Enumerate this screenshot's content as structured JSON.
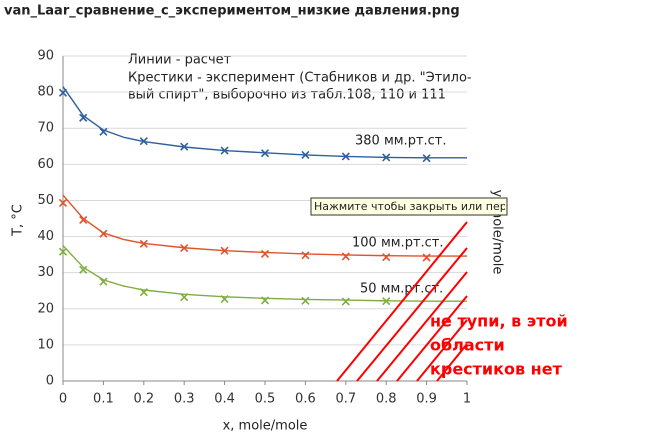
{
  "file_name": "van_Laar_сравнение_с_экспериментом_низкие давления.png",
  "tooltip": "Нажмите чтобы закрыть или перета",
  "overlay_note": [
    "не тупи, в этой",
    "области",
    "крестиков нет"
  ],
  "chart_data": {
    "type": "line",
    "x_label": "x, mole/mole",
    "y_label": "T, °C",
    "y2_label": "y, mole/mole",
    "notes": [
      "Линии - расчет",
      "Крестики - эксперимент (Стабников и др. \"Этило-",
      "вый спирт\", выборочно из табл.108, 110 и 111"
    ],
    "xlim": [
      0,
      1
    ],
    "xticks": [
      0,
      0.1,
      0.2,
      0.3,
      0.4,
      0.5,
      0.6,
      0.7,
      0.8,
      0.9,
      1
    ],
    "ylim": [
      0,
      90
    ],
    "yticks": [
      0,
      10,
      20,
      30,
      40,
      50,
      60,
      70,
      80,
      90
    ],
    "grid": true,
    "series": [
      {
        "name": "380 мм.рт.ст.",
        "color": "#2f5f9f",
        "x": [
          0,
          0.05,
          0.1,
          0.15,
          0.2,
          0.3,
          0.4,
          0.5,
          0.6,
          0.7,
          0.8,
          0.9,
          1
        ],
        "values": [
          81.5,
          73.5,
          69.5,
          67.5,
          66.3,
          64.8,
          63.8,
          63.2,
          62.6,
          62.2,
          61.9,
          61.8,
          61.8
        ],
        "points": {
          "x": [
            0,
            0.05,
            0.1,
            0.2,
            0.3,
            0.4,
            0.5,
            0.6,
            0.7,
            0.8,
            0.9
          ],
          "values": [
            79.8,
            72.9,
            69,
            66.4,
            64.9,
            63.8,
            63.1,
            62.6,
            62.2,
            61.9,
            61.7
          ]
        }
      },
      {
        "name": "100 мм.рт.ст.",
        "color": "#e0532b",
        "x": [
          0,
          0.05,
          0.1,
          0.15,
          0.2,
          0.3,
          0.4,
          0.5,
          0.6,
          0.7,
          0.8,
          0.9,
          1
        ],
        "values": [
          51.5,
          45,
          41,
          39.2,
          38.1,
          36.9,
          36.1,
          35.6,
          35.2,
          34.9,
          34.7,
          34.6,
          34.6
        ],
        "points": {
          "x": [
            0,
            0.05,
            0.1,
            0.2,
            0.3,
            0.4,
            0.5,
            0.6,
            0.7,
            0.8,
            0.9
          ],
          "values": [
            49.3,
            44.6,
            40.8,
            38,
            36.8,
            36.1,
            35.2,
            34.8,
            34.5,
            34.3,
            34.2
          ]
        }
      },
      {
        "name": "50 мм.рт.ст.",
        "color": "#7fae3f",
        "x": [
          0,
          0.05,
          0.1,
          0.15,
          0.2,
          0.3,
          0.4,
          0.5,
          0.6,
          0.7,
          0.8,
          0.9,
          1
        ],
        "values": [
          37.5,
          31.5,
          28,
          26.3,
          25.2,
          24,
          23.3,
          22.9,
          22.6,
          22.4,
          22.2,
          22.1,
          22.1
        ],
        "points": {
          "x": [
            0,
            0.05,
            0.1,
            0.2,
            0.3,
            0.4,
            0.5,
            0.6,
            0.7,
            0.8
          ],
          "values": [
            35.8,
            30.8,
            27.5,
            24.6,
            23.2,
            22.7,
            22.3,
            22.2,
            22,
            22.1
          ]
        }
      }
    ]
  }
}
